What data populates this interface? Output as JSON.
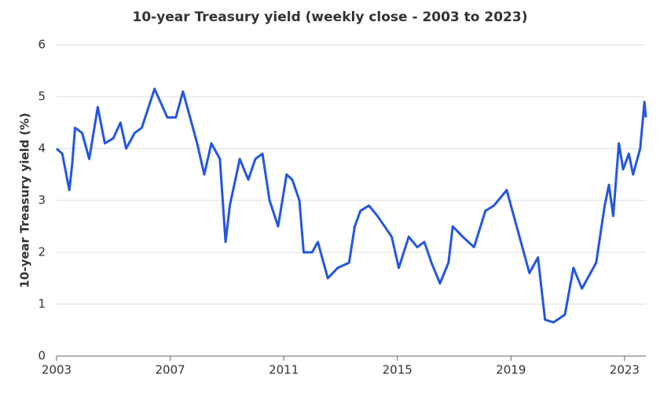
{
  "chart_data": {
    "type": "line",
    "title": "10-year Treasury yield (weekly close - 2003 to 2023)",
    "y_label": "10-year Treasury yield (%)",
    "x": [
      2003.0,
      2003.2,
      2003.45,
      2003.55,
      2003.65,
      2003.9,
      2004.15,
      2004.45,
      2004.7,
      2005.0,
      2005.25,
      2005.45,
      2005.75,
      2006.0,
      2006.45,
      2006.9,
      2007.2,
      2007.45,
      2007.7,
      2007.95,
      2008.2,
      2008.45,
      2008.75,
      2008.95,
      2009.1,
      2009.45,
      2009.75,
      2010.0,
      2010.25,
      2010.5,
      2010.8,
      2011.1,
      2011.3,
      2011.55,
      2011.7,
      2012.0,
      2012.2,
      2012.55,
      2012.9,
      2013.3,
      2013.5,
      2013.7,
      2014.0,
      2014.3,
      2014.8,
      2015.05,
      2015.4,
      2015.7,
      2015.95,
      2016.2,
      2016.5,
      2016.8,
      2016.95,
      2017.3,
      2017.7,
      2018.1,
      2018.4,
      2018.85,
      2019.1,
      2019.4,
      2019.65,
      2019.95,
      2020.2,
      2020.5,
      2020.9,
      2021.2,
      2021.5,
      2021.8,
      2022.0,
      2022.3,
      2022.45,
      2022.6,
      2022.8,
      2022.95,
      2023.15,
      2023.3,
      2023.55,
      2023.7,
      2023.75
    ],
    "series": [
      {
        "name": "10-year Treasury yield",
        "color": "#2456e0",
        "values": [
          4.0,
          3.9,
          3.2,
          3.7,
          4.4,
          4.3,
          3.8,
          4.8,
          4.1,
          4.2,
          4.5,
          4.0,
          4.3,
          4.4,
          5.15,
          4.6,
          4.6,
          5.1,
          4.6,
          4.1,
          3.5,
          4.1,
          3.8,
          2.2,
          2.9,
          3.8,
          3.4,
          3.8,
          3.9,
          3.0,
          2.5,
          3.5,
          3.4,
          3.0,
          2.0,
          2.0,
          2.2,
          1.5,
          1.7,
          1.8,
          2.5,
          2.8,
          2.9,
          2.7,
          2.3,
          1.7,
          2.3,
          2.1,
          2.2,
          1.8,
          1.4,
          1.8,
          2.5,
          2.3,
          2.1,
          2.8,
          2.9,
          3.2,
          2.7,
          2.1,
          1.6,
          1.9,
          0.7,
          0.65,
          0.8,
          1.7,
          1.3,
          1.6,
          1.8,
          2.9,
          3.3,
          2.7,
          4.1,
          3.6,
          3.9,
          3.5,
          4.0,
          4.9,
          4.6
        ]
      }
    ],
    "xlim": [
      2003,
      2023.75
    ],
    "xticks": [
      2003,
      2007,
      2011,
      2015,
      2019,
      2023
    ],
    "ylim": [
      0,
      6
    ],
    "yticks": [
      0,
      1,
      2,
      3,
      4,
      5,
      6
    ],
    "grid": true
  }
}
